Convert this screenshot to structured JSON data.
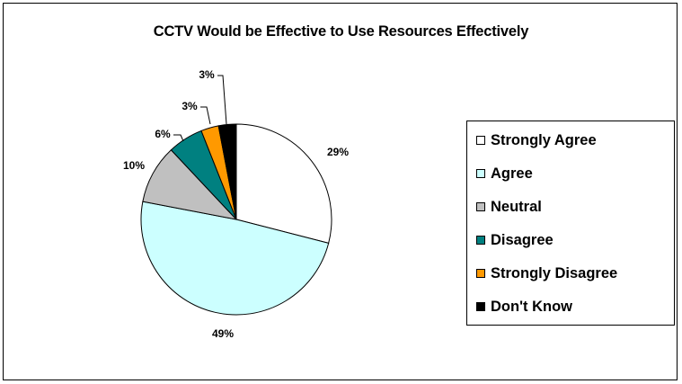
{
  "chart_data": {
    "type": "pie",
    "title": "CCTV Would be Effective to Use Resources Effectively",
    "categories": [
      "Strongly Agree",
      "Agree",
      "Neutral",
      "Disagree",
      "Strongly Disagree",
      "Don't Know"
    ],
    "values": [
      29,
      49,
      10,
      6,
      3,
      3
    ],
    "labels": [
      "29%",
      "49%",
      "10%",
      "6%",
      "3%",
      "3%"
    ],
    "colors": [
      "#FFFFFF",
      "#CCFFFF",
      "#C0C0C0",
      "#008080",
      "#FF9900",
      "#000000"
    ],
    "legend_position": "right"
  }
}
